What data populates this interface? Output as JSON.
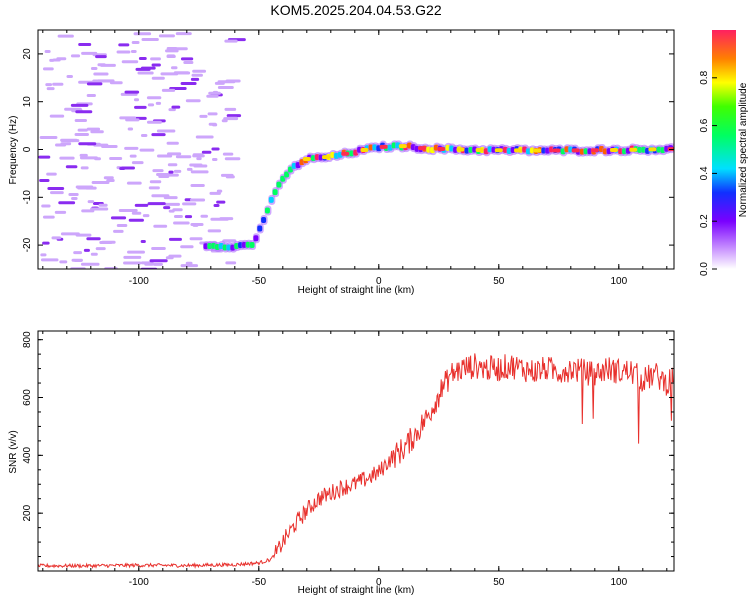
{
  "title": "KOM5.2025.204.04.53.G22",
  "chart_data": [
    {
      "type": "heatmap",
      "xlabel": "Height of straight line (km)",
      "ylabel": "Frequency (Hz)",
      "xlim": [
        -142,
        123
      ],
      "ylim": [
        -25,
        25
      ],
      "xticks": [
        -100,
        -50,
        0,
        50,
        100
      ],
      "yticks": [
        -20,
        -10,
        0,
        10,
        20
      ],
      "colorbar": {
        "label": "Normalized spectral amplitude",
        "ticks": [
          0.0,
          0.2,
          0.4,
          0.6,
          0.8
        ],
        "range": [
          0,
          1
        ],
        "colormap": [
          "#ffffff",
          "#cc99ff",
          "#7a00ff",
          "#1030ff",
          "#00e0ff",
          "#00ff40",
          "#ffff00",
          "#ff2060"
        ]
      },
      "trace_frequency": {
        "height_km": [
          -72,
          -60,
          -52,
          -50,
          -45,
          -40,
          -35,
          -30,
          -20,
          -10,
          0,
          10,
          20,
          40,
          60,
          80,
          100,
          123
        ],
        "frequency_hz": [
          -20,
          -20.3,
          -19.8,
          -17,
          -11,
          -6,
          -3.5,
          -2,
          -1.5,
          -0.5,
          0.5,
          0.7,
          0.2,
          -0.1,
          -0.2,
          -0.2,
          -0.1,
          0.1
        ]
      }
    },
    {
      "type": "line",
      "xlabel": "Height of straight line (km)",
      "ylabel": "SNR (v/v)",
      "xlim": [
        -142,
        123
      ],
      "ylim": [
        0,
        830
      ],
      "xticks": [
        -100,
        -50,
        0,
        50,
        100
      ],
      "yticks": [
        200,
        400,
        600,
        800
      ],
      "series": [
        {
          "color": "#e8302c",
          "x": [
            -142,
            -120,
            -100,
            -80,
            -60,
            -50,
            -45,
            -42,
            -40,
            -35,
            -30,
            -25,
            -20,
            -15,
            -10,
            -5,
            0,
            5,
            10,
            15,
            20,
            25,
            30,
            35,
            40,
            45,
            50,
            55,
            60,
            65,
            70,
            75,
            80,
            85,
            90,
            95,
            100,
            105,
            110,
            115,
            120,
            123
          ],
          "values": [
            18,
            18,
            20,
            19,
            22,
            28,
            40,
            70,
            100,
            160,
            210,
            250,
            270,
            290,
            300,
            320,
            340,
            390,
            420,
            470,
            530,
            610,
            680,
            700,
            710,
            700,
            700,
            710,
            700,
            690,
            700,
            690,
            700,
            690,
            680,
            700,
            690,
            690,
            660,
            680,
            650,
            680
          ]
        }
      ]
    }
  ]
}
